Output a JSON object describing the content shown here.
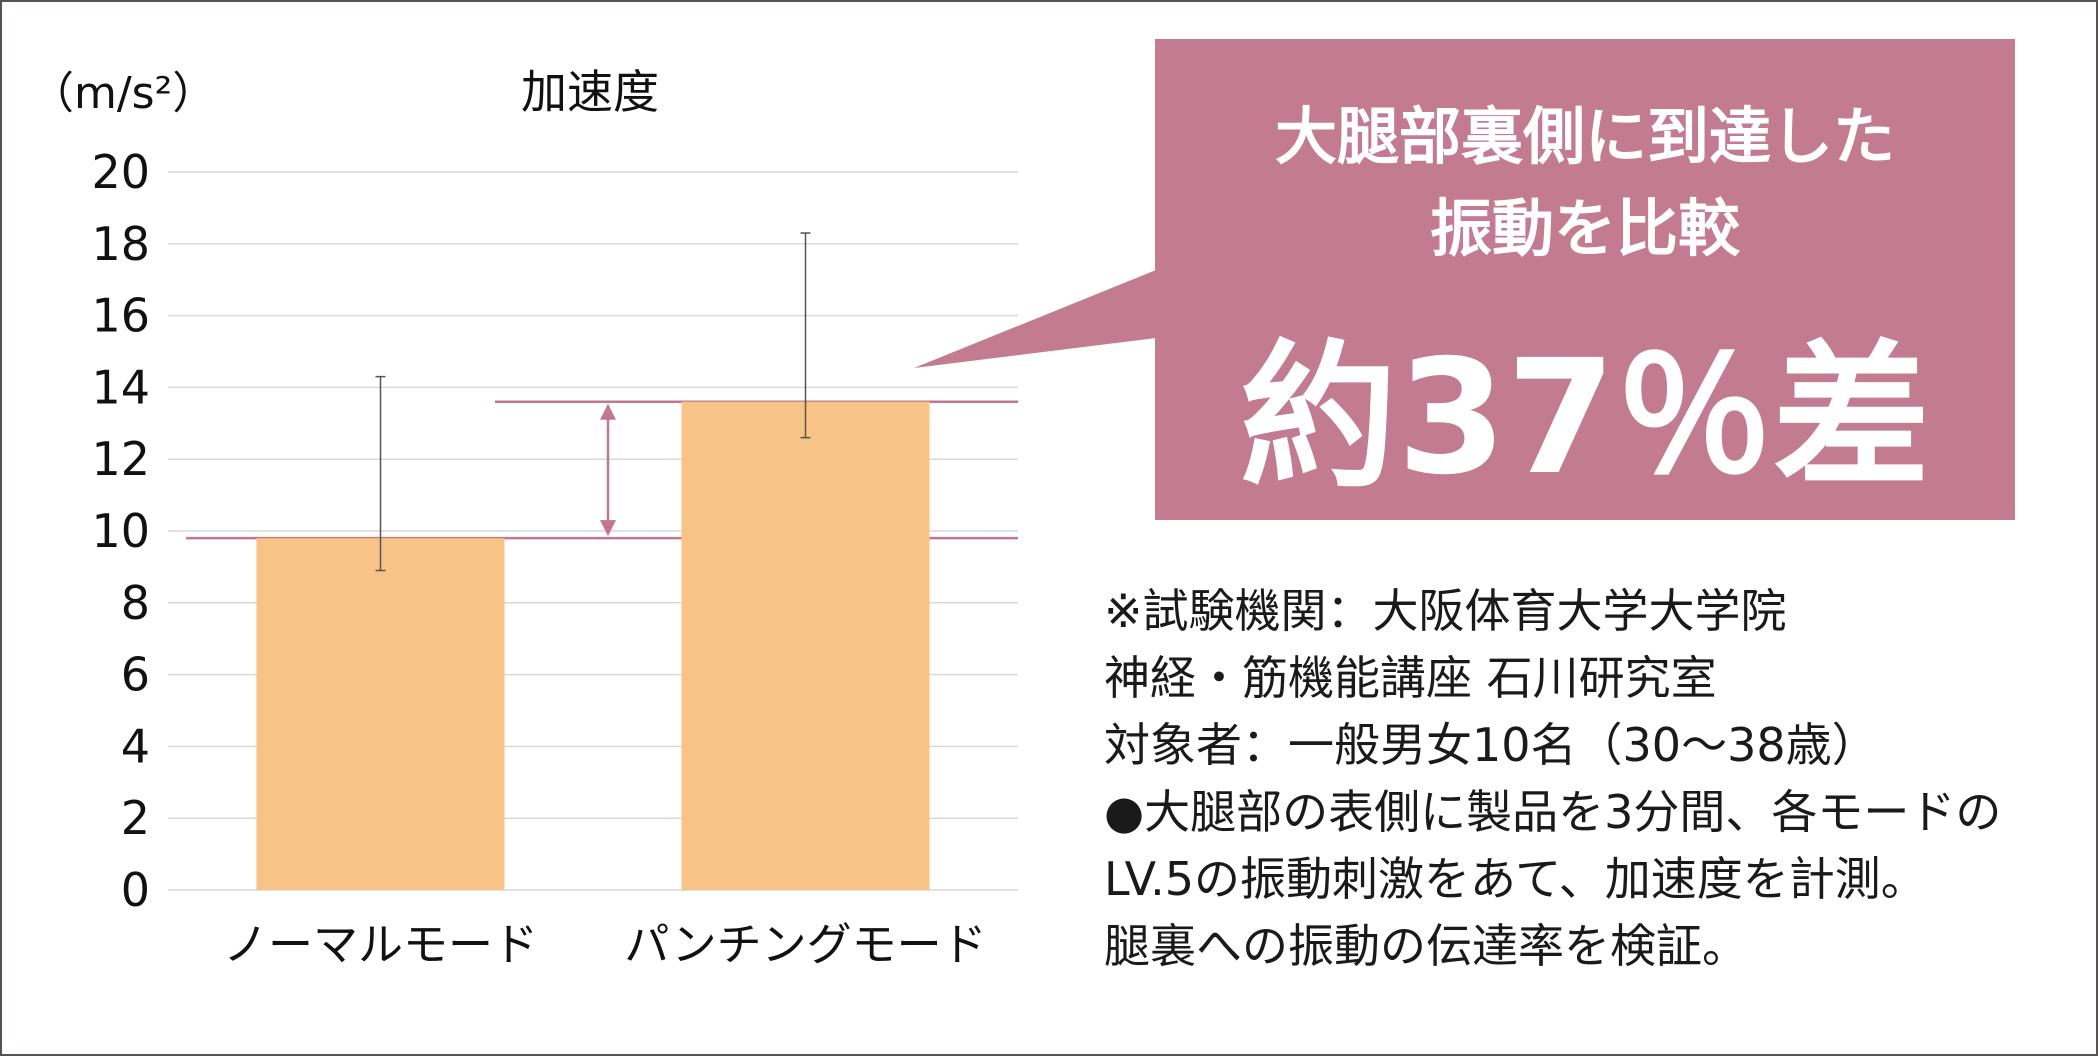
{
  "chart_data": {
    "type": "bar",
    "title": "加速度",
    "ylabel": "（m/s²）",
    "xlabel": "",
    "ylim": [
      0,
      20
    ],
    "yticks": [
      0,
      2,
      4,
      6,
      8,
      10,
      12,
      14,
      16,
      18,
      20
    ],
    "categories": [
      "ノーマルモード",
      "パンチングモード"
    ],
    "values": [
      9.8,
      13.6
    ],
    "error_bars": [
      {
        "low": 8.9,
        "high": 14.3
      },
      {
        "low": 12.6,
        "high": 18.3
      }
    ],
    "grid": true,
    "bar_color": "#f8c386",
    "reference_lines": [
      9.8,
      13.6
    ],
    "reference_color": "#c07890"
  },
  "callout": {
    "headline_line1": "大腿部裏側に到達した",
    "headline_line2": "振動を比較",
    "big_text": "約37％差",
    "color": "#c27b91"
  },
  "notes": [
    "※試験機関：大阪体育大学大学院",
    "神経・筋機能講座 石川研究室",
    "対象者：一般男女10名（30～38歳）",
    "●大腿部の表側に製品を3分間、各モードの",
    "LV.5の振動刺激をあて、加速度を計測。",
    "腿裏への振動の伝達率を検証。"
  ]
}
